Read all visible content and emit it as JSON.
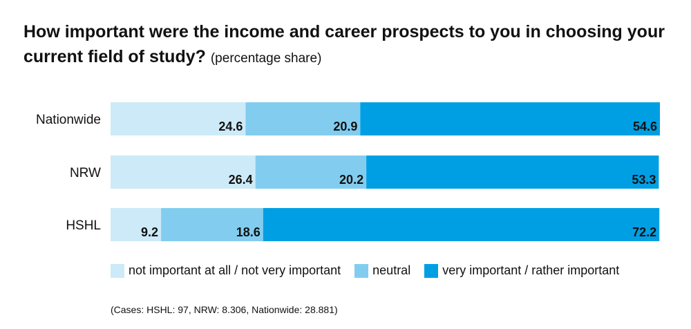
{
  "title": {
    "main": "How important were the income and career prospects to you in choosing your current field of study?",
    "sub": "(percentage share)"
  },
  "chart_data": {
    "type": "bar",
    "orientation": "horizontal",
    "stacked": true,
    "categories": [
      "Nationwide",
      "NRW",
      "HSHL"
    ],
    "series": [
      {
        "name": "not important at all / not very important",
        "color": "#cdeaf8",
        "values": [
          24.6,
          26.4,
          9.2
        ]
      },
      {
        "name": "neutral",
        "color": "#82cdef",
        "values": [
          20.9,
          20.2,
          18.6
        ]
      },
      {
        "name": "very important / rather important",
        "color": "#009fe3",
        "values": [
          54.6,
          53.3,
          72.2
        ]
      }
    ],
    "xlim": [
      0,
      100.1
    ],
    "grid": false,
    "legend_position": "bottom"
  },
  "note": "(Cases: HSHL: 97, NRW: 8.306, Nationwide: 28.881)"
}
